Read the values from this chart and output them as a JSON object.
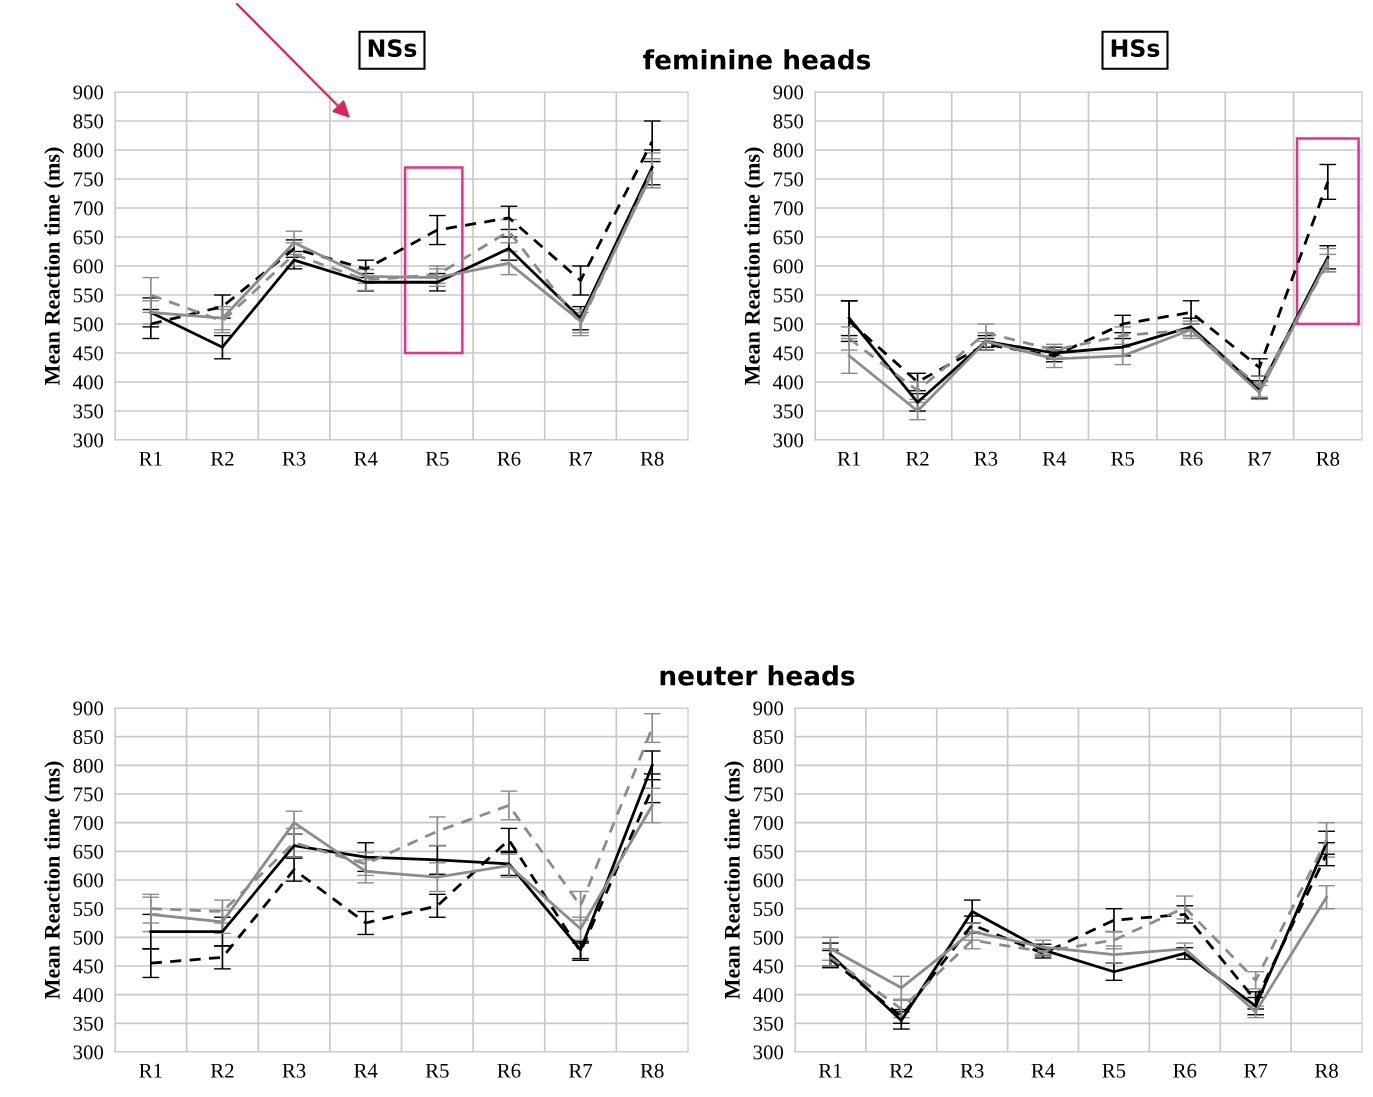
{
  "chart_data": [
    {
      "type": "line",
      "title": "NSs",
      "subtitle": "feminine heads",
      "ylabel": "Mean Reaction time (ms)",
      "categories": [
        "R1",
        "R2",
        "R3",
        "R4",
        "R5",
        "R6",
        "R7",
        "R8"
      ],
      "ylim": [
        300,
        900
      ],
      "yticks": [
        300,
        350,
        400,
        450,
        500,
        550,
        600,
        650,
        700,
        750,
        800,
        850,
        900
      ],
      "grid": true,
      "marker": "none",
      "series": [
        {
          "color": "#000000",
          "line_style": "solid",
          "values": [
            520,
            460,
            610,
            572,
            572,
            630,
            510,
            770
          ],
          "errors": [
            25,
            20,
            15,
            15,
            15,
            20,
            20,
            30
          ]
        },
        {
          "color": "#000000",
          "line_style": "dashed",
          "values": [
            500,
            530,
            630,
            595,
            662,
            683,
            575,
            815
          ],
          "errors": [
            25,
            20,
            15,
            15,
            25,
            20,
            25,
            35
          ]
        },
        {
          "color": "#8c8c8c",
          "line_style": "solid",
          "values": [
            520,
            510,
            640,
            582,
            580,
            605,
            505,
            760
          ],
          "errors": [
            20,
            20,
            20,
            12,
            15,
            20,
            20,
            25
          ]
        },
        {
          "color": "#8c8c8c",
          "line_style": "dashed",
          "values": [
            550,
            505,
            620,
            576,
            585,
            660,
            500,
            765
          ],
          "errors": [
            30,
            20,
            20,
            18,
            15,
            20,
            20,
            30
          ]
        }
      ]
    },
    {
      "type": "line",
      "title": "HSs",
      "ylabel": "Mean Reaction time (ms)",
      "categories": [
        "R1",
        "R2",
        "R3",
        "R4",
        "R5",
        "R6",
        "R7",
        "R8"
      ],
      "ylim": [
        300,
        900
      ],
      "yticks": [
        300,
        350,
        400,
        450,
        500,
        550,
        600,
        650,
        700,
        750,
        800,
        850,
        900
      ],
      "grid": true,
      "marker": "none",
      "series": [
        {
          "color": "#000000",
          "line_style": "solid",
          "values": [
            510,
            365,
            470,
            450,
            460,
            495,
            387,
            615
          ],
          "errors": [
            30,
            15,
            10,
            10,
            15,
            15,
            15,
            20
          ]
        },
        {
          "color": "#000000",
          "line_style": "dashed",
          "values": [
            505,
            400,
            465,
            445,
            500,
            520,
            425,
            745
          ],
          "errors": [
            35,
            15,
            10,
            10,
            15,
            20,
            15,
            30
          ]
        },
        {
          "color": "#8c8c8c",
          "line_style": "solid",
          "values": [
            445,
            350,
            470,
            440,
            445,
            490,
            382,
            610
          ],
          "errors": [
            30,
            15,
            15,
            15,
            15,
            15,
            12,
            20
          ]
        },
        {
          "color": "#8c8c8c",
          "line_style": "dashed",
          "values": [
            475,
            385,
            485,
            455,
            480,
            490,
            392,
            605
          ],
          "errors": [
            20,
            15,
            15,
            10,
            15,
            10,
            18,
            15
          ]
        }
      ]
    },
    {
      "type": "line",
      "subtitle": "neuter heads",
      "ylabel": "Mean Reaction time (ms)",
      "categories": [
        "R1",
        "R2",
        "R3",
        "R4",
        "R5",
        "R6",
        "R7",
        "R8"
      ],
      "ylim": [
        300,
        900
      ],
      "yticks": [
        300,
        350,
        400,
        450,
        500,
        550,
        600,
        650,
        700,
        750,
        800,
        850,
        900
      ],
      "grid": true,
      "marker": "none",
      "series": [
        {
          "color": "#000000",
          "line_style": "solid",
          "values": [
            510,
            510,
            660,
            640,
            635,
            628,
            478,
            800
          ],
          "errors": [
            30,
            25,
            20,
            25,
            25,
            20,
            15,
            25
          ]
        },
        {
          "color": "#000000",
          "line_style": "dashed",
          "values": [
            455,
            465,
            618,
            525,
            555,
            670,
            475,
            760
          ],
          "errors": [
            25,
            20,
            20,
            20,
            20,
            20,
            15,
            25
          ]
        },
        {
          "color": "#8c8c8c",
          "line_style": "solid",
          "values": [
            540,
            527,
            700,
            615,
            605,
            625,
            515,
            730
          ],
          "errors": [
            30,
            20,
            20,
            20,
            25,
            20,
            20,
            30
          ]
        },
        {
          "color": "#8c8c8c",
          "line_style": "dashed",
          "values": [
            550,
            545,
            665,
            628,
            685,
            730,
            555,
            865
          ],
          "errors": [
            25,
            20,
            25,
            20,
            25,
            25,
            25,
            25
          ]
        }
      ]
    },
    {
      "type": "line",
      "ylabel": "Mean Reaction time (ms)",
      "categories": [
        "R1",
        "R2",
        "R3",
        "R4",
        "R5",
        "R6",
        "R7",
        "R8"
      ],
      "ylim": [
        300,
        900
      ],
      "yticks": [
        300,
        350,
        400,
        450,
        500,
        550,
        600,
        650,
        700,
        750,
        800,
        850,
        900
      ],
      "grid": true,
      "marker": "none",
      "series": [
        {
          "color": "#000000",
          "line_style": "solid",
          "values": [
            470,
            355,
            545,
            478,
            440,
            472,
            380,
            665
          ],
          "errors": [
            20,
            15,
            20,
            10,
            15,
            10,
            15,
            20
          ]
        },
        {
          "color": "#000000",
          "line_style": "dashed",
          "values": [
            462,
            362,
            522,
            472,
            530,
            540,
            390,
            645
          ],
          "errors": [
            15,
            12,
            15,
            8,
            20,
            15,
            15,
            20
          ]
        },
        {
          "color": "#8c8c8c",
          "line_style": "solid",
          "values": [
            480,
            412,
            510,
            483,
            470,
            480,
            370,
            570
          ],
          "errors": [
            20,
            20,
            15,
            12,
            15,
            10,
            10,
            20
          ]
        },
        {
          "color": "#8c8c8c",
          "line_style": "dashed",
          "values": [
            465,
            375,
            495,
            475,
            495,
            552,
            425,
            670
          ],
          "errors": [
            15,
            15,
            15,
            6,
            15,
            20,
            15,
            30
          ]
        }
      ]
    }
  ]
}
